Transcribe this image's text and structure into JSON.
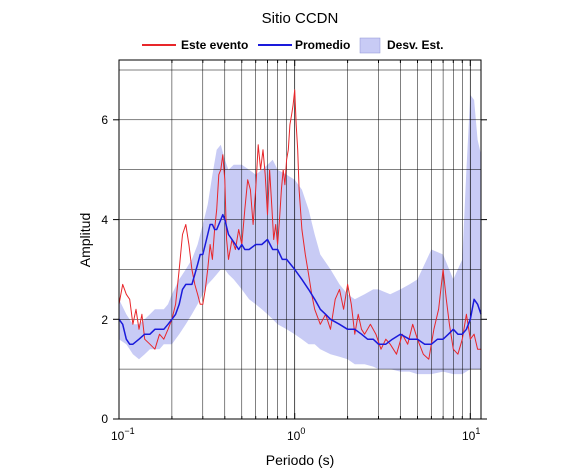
{
  "chart_data": {
    "type": "line",
    "title": "Sitio CCDN",
    "xlabel": "Periodo (s)",
    "ylabel": "Amplitud",
    "xscale": "log",
    "xlim": [
      0.1,
      11.5
    ],
    "ylim": [
      0,
      7.2
    ],
    "grid": true,
    "legend_placement": "top",
    "x_ticks": [
      {
        "base": "10",
        "exp": "−1",
        "value": 0.1
      },
      {
        "base": "10",
        "exp": "0",
        "value": 1
      },
      {
        "base": "10",
        "exp": "1",
        "value": 10
      }
    ],
    "x_tick_labels": {
      "p1": "10",
      "p1_exp": "−1",
      "p2": "10",
      "p2_exp": "0",
      "p3": "10",
      "p3_exp": "1"
    },
    "y_ticks": [
      "0",
      "2",
      "4",
      "6"
    ],
    "y_tick_values": [
      0,
      2,
      4,
      6
    ],
    "series": [
      {
        "name": "Este evento",
        "color": "#e8262a",
        "x": [
          0.1,
          0.105,
          0.11,
          0.115,
          0.12,
          0.125,
          0.13,
          0.135,
          0.14,
          0.15,
          0.16,
          0.17,
          0.18,
          0.19,
          0.2,
          0.21,
          0.22,
          0.23,
          0.24,
          0.25,
          0.26,
          0.27,
          0.28,
          0.29,
          0.3,
          0.31,
          0.32,
          0.33,
          0.34,
          0.35,
          0.36,
          0.37,
          0.38,
          0.39,
          0.4,
          0.41,
          0.42,
          0.44,
          0.46,
          0.48,
          0.5,
          0.52,
          0.54,
          0.56,
          0.58,
          0.6,
          0.62,
          0.64,
          0.66,
          0.68,
          0.7,
          0.72,
          0.74,
          0.76,
          0.78,
          0.8,
          0.82,
          0.84,
          0.86,
          0.88,
          0.9,
          0.92,
          0.94,
          0.96,
          0.98,
          1.0,
          1.02,
          1.04,
          1.06,
          1.1,
          1.15,
          1.2,
          1.25,
          1.3,
          1.4,
          1.5,
          1.6,
          1.7,
          1.8,
          1.9,
          2.0,
          2.1,
          2.2,
          2.3,
          2.4,
          2.5,
          2.7,
          2.9,
          3.1,
          3.3,
          3.5,
          3.8,
          4.1,
          4.4,
          4.7,
          5.0,
          5.4,
          5.8,
          6.2,
          6.6,
          7.0,
          7.3,
          7.6,
          8.0,
          8.5,
          9.0,
          9.5,
          10.0,
          10.5,
          11.0,
          11.5
        ],
        "y": [
          2.3,
          2.7,
          2.5,
          2.4,
          1.9,
          2.2,
          1.8,
          2.1,
          1.6,
          1.5,
          1.4,
          1.7,
          1.6,
          1.8,
          2.0,
          2.3,
          3.0,
          3.7,
          3.9,
          3.5,
          3.0,
          2.7,
          2.5,
          2.3,
          2.3,
          2.6,
          3.0,
          3.5,
          3.2,
          3.8,
          4.2,
          4.9,
          5.0,
          5.3,
          4.8,
          3.6,
          3.2,
          3.6,
          3.4,
          3.8,
          3.5,
          4.2,
          4.8,
          4.6,
          3.9,
          4.6,
          5.5,
          5.0,
          5.4,
          4.9,
          4.1,
          5.0,
          4.3,
          3.6,
          3.9,
          3.5,
          4.0,
          4.6,
          5.0,
          4.7,
          5.2,
          5.4,
          5.9,
          6.1,
          6.3,
          6.6,
          5.9,
          5.4,
          4.6,
          3.8,
          3.3,
          2.9,
          2.5,
          2.2,
          1.9,
          2.1,
          1.8,
          2.4,
          2.6,
          2.2,
          2.7,
          2.3,
          1.7,
          2.1,
          1.8,
          1.7,
          1.9,
          1.7,
          1.4,
          1.6,
          1.5,
          1.3,
          1.7,
          1.5,
          1.9,
          1.6,
          1.3,
          1.2,
          1.8,
          2.2,
          3.0,
          2.4,
          1.9,
          1.4,
          1.3,
          1.6,
          2.1,
          1.6,
          1.7,
          1.4,
          1.4
        ]
      },
      {
        "name": "Promedio",
        "color": "#1a1adb",
        "x": [
          0.1,
          0.105,
          0.11,
          0.115,
          0.12,
          0.13,
          0.14,
          0.15,
          0.16,
          0.17,
          0.18,
          0.19,
          0.2,
          0.21,
          0.22,
          0.23,
          0.24,
          0.25,
          0.26,
          0.27,
          0.28,
          0.29,
          0.3,
          0.31,
          0.32,
          0.33,
          0.34,
          0.35,
          0.36,
          0.37,
          0.38,
          0.39,
          0.4,
          0.42,
          0.44,
          0.46,
          0.48,
          0.5,
          0.52,
          0.55,
          0.6,
          0.65,
          0.7,
          0.75,
          0.8,
          0.85,
          0.9,
          1.0,
          1.1,
          1.2,
          1.3,
          1.4,
          1.5,
          1.6,
          1.8,
          2.0,
          2.2,
          2.4,
          2.6,
          2.8,
          3.0,
          3.3,
          3.6,
          4.0,
          4.5,
          5.0,
          5.5,
          6.0,
          6.5,
          7.0,
          7.5,
          8.0,
          8.5,
          9.0,
          9.5,
          10.0,
          10.5,
          11.0,
          11.5
        ],
        "y": [
          2.0,
          1.9,
          1.6,
          1.5,
          1.5,
          1.6,
          1.7,
          1.7,
          1.8,
          1.8,
          1.8,
          1.9,
          2.0,
          2.1,
          2.3,
          2.6,
          2.7,
          2.7,
          2.7,
          2.9,
          3.1,
          3.3,
          3.3,
          3.5,
          3.7,
          3.9,
          3.9,
          3.8,
          3.8,
          3.9,
          4.0,
          4.1,
          4.0,
          3.7,
          3.6,
          3.5,
          3.4,
          3.5,
          3.4,
          3.4,
          3.5,
          3.5,
          3.6,
          3.4,
          3.4,
          3.2,
          3.2,
          3.0,
          2.8,
          2.6,
          2.4,
          2.2,
          2.1,
          2.0,
          1.9,
          1.8,
          1.8,
          1.7,
          1.6,
          1.6,
          1.5,
          1.5,
          1.6,
          1.7,
          1.6,
          1.6,
          1.5,
          1.5,
          1.6,
          1.6,
          1.7,
          1.8,
          1.7,
          1.7,
          1.8,
          2.0,
          2.4,
          2.3,
          2.1
        ]
      }
    ],
    "band": {
      "name": "Desv. Est.",
      "color": "#c8cbf5",
      "x": [
        0.1,
        0.11,
        0.12,
        0.13,
        0.14,
        0.15,
        0.16,
        0.17,
        0.18,
        0.19,
        0.2,
        0.22,
        0.24,
        0.26,
        0.28,
        0.3,
        0.32,
        0.34,
        0.36,
        0.38,
        0.4,
        0.42,
        0.45,
        0.5,
        0.55,
        0.6,
        0.65,
        0.7,
        0.75,
        0.8,
        0.9,
        1.0,
        1.1,
        1.2,
        1.3,
        1.4,
        1.6,
        1.8,
        2.0,
        2.2,
        2.5,
        2.8,
        3.0,
        3.5,
        4.0,
        4.5,
        5.0,
        6.0,
        7.0,
        8.0,
        9.0,
        9.5,
        10.0,
        10.5,
        11.0,
        11.5
      ],
      "upper": [
        2.4,
        2.1,
        1.9,
        1.9,
        2.0,
        2.1,
        2.2,
        2.2,
        2.2,
        2.3,
        2.5,
        2.8,
        3.0,
        3.2,
        3.5,
        3.9,
        4.3,
        4.9,
        5.4,
        5.5,
        5.2,
        5.0,
        5.1,
        5.1,
        5.0,
        4.9,
        5.0,
        5.1,
        5.2,
        5.0,
        4.9,
        4.8,
        4.6,
        4.2,
        3.7,
        3.3,
        3.0,
        2.7,
        2.5,
        2.4,
        2.5,
        2.6,
        2.6,
        2.5,
        2.6,
        2.7,
        2.8,
        3.4,
        3.3,
        2.8,
        3.2,
        5.0,
        6.5,
        6.4,
        5.6,
        5.3
      ],
      "lower": [
        1.6,
        1.5,
        1.3,
        1.2,
        1.3,
        1.4,
        1.4,
        1.4,
        1.5,
        1.5,
        1.5,
        1.7,
        1.9,
        2.1,
        2.3,
        2.5,
        2.7,
        2.8,
        2.9,
        3.0,
        3.0,
        2.9,
        2.8,
        2.6,
        2.4,
        2.3,
        2.2,
        2.1,
        2.0,
        1.9,
        1.8,
        1.7,
        1.6,
        1.5,
        1.5,
        1.4,
        1.3,
        1.25,
        1.2,
        1.1,
        1.1,
        1.05,
        1.0,
        1.0,
        0.95,
        0.95,
        0.9,
        0.9,
        0.95,
        0.9,
        0.9,
        0.95,
        1.0,
        1.0,
        1.0,
        1.0
      ]
    }
  }
}
